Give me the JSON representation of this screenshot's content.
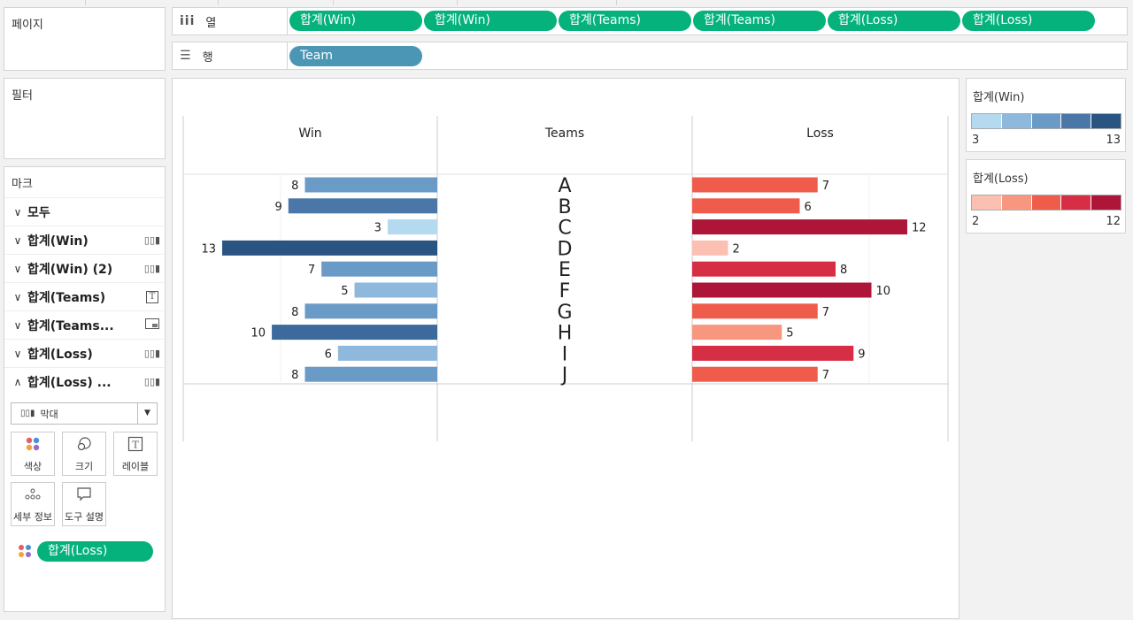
{
  "shelves": {
    "columns": {
      "label": "열",
      "icon": "columns-icon",
      "pills": [
        "합계(Win)",
        "합계(Win)",
        "합계(Teams)",
        "합계(Teams)",
        "합계(Loss)",
        "합계(Loss)"
      ]
    },
    "rows": {
      "label": "행",
      "icon": "rows-icon",
      "pills": [
        "Team"
      ]
    }
  },
  "panels": {
    "pages": "페이지",
    "filters": "필터",
    "marks": "마크"
  },
  "marks": {
    "rows": [
      {
        "label": "모두",
        "chevron": "v",
        "icon": ""
      },
      {
        "label": "합계(Win)",
        "chevron": "v",
        "icon": "bar-chart-icon"
      },
      {
        "label": "합계(Win) (2)",
        "chevron": "v",
        "icon": "bar-chart-icon"
      },
      {
        "label": "합계(Teams)",
        "chevron": "v",
        "icon": "text-icon"
      },
      {
        "label": "합계(Teams...",
        "chevron": "v",
        "icon": "map-icon"
      },
      {
        "label": "합계(Loss)",
        "chevron": "v",
        "icon": "bar-chart-icon"
      },
      {
        "label": "합계(Loss) ...",
        "chevron": "^",
        "icon": "bar-chart-icon"
      }
    ],
    "mark_type": "막대",
    "buttons": [
      {
        "label": "색상",
        "icon": "color-icon"
      },
      {
        "label": "크기",
        "icon": "size-icon"
      },
      {
        "label": "레이블",
        "icon": "label-icon"
      },
      {
        "label": "세부 정보",
        "icon": "detail-icon"
      },
      {
        "label": "도구 설명",
        "icon": "tooltip-icon"
      }
    ],
    "color_pill": "합계(Loss)"
  },
  "legends": [
    {
      "title": "합계(Win)",
      "min": "3",
      "max": "13",
      "colors": [
        "#b5d9ef",
        "#8fb9dc",
        "#6a9bc7",
        "#4a77a8",
        "#2a5582"
      ]
    },
    {
      "title": "합계(Loss)",
      "min": "2",
      "max": "12",
      "colors": [
        "#fcc0b3",
        "#f8977f",
        "#ef5c4c",
        "#d62f45",
        "#ad1639"
      ]
    }
  ],
  "chart_data": {
    "type": "bar",
    "headers": [
      "Win",
      "Teams",
      "Loss"
    ],
    "categories": [
      "A",
      "B",
      "C",
      "D",
      "E",
      "F",
      "G",
      "H",
      "I",
      "J"
    ],
    "series": [
      {
        "name": "Win",
        "values": [
          8,
          9,
          3,
          13,
          7,
          5,
          8,
          10,
          6,
          8
        ]
      },
      {
        "name": "Loss",
        "values": [
          7,
          6,
          12,
          2,
          8,
          10,
          7,
          5,
          9,
          7
        ]
      }
    ],
    "win_colors": [
      "#6a9bc7",
      "#4a77a8",
      "#b5d9ef",
      "#2a5582",
      "#6a9bc7",
      "#8fb9dc",
      "#6a9bc7",
      "#3d6a9c",
      "#8fb9dc",
      "#6a9bc7"
    ],
    "loss_colors": [
      "#ef5c4c",
      "#ef5c4c",
      "#ad1639",
      "#fcc0b3",
      "#d62f45",
      "#ad1639",
      "#ef5c4c",
      "#f8977f",
      "#d62f45",
      "#ef5c4c"
    ]
  }
}
